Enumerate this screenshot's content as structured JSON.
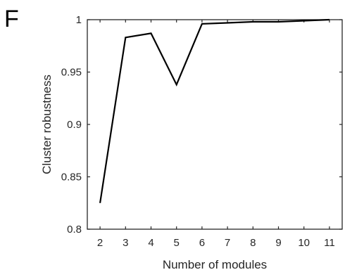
{
  "panel_letter": "F",
  "chart_data": {
    "type": "line",
    "xlabel": "Number of modules",
    "ylabel": "Cluster robustness",
    "x": [
      2,
      3,
      4,
      5,
      6,
      7,
      8,
      9,
      10,
      11
    ],
    "series": [
      {
        "values": [
          0.825,
          0.983,
          0.987,
          0.938,
          0.996,
          0.997,
          0.998,
          0.998,
          0.999,
          1.0
        ]
      }
    ],
    "xlim": [
      1.5,
      11.5
    ],
    "ylim": [
      0.8,
      1.0
    ],
    "xticks": [
      "2",
      "3",
      "4",
      "5",
      "6",
      "7",
      "8",
      "9",
      "10",
      "11"
    ],
    "yticks": [
      "0.8",
      "0.85",
      "0.9",
      "0.95",
      "1"
    ],
    "ytick_values": [
      0.8,
      0.85,
      0.9,
      0.95,
      1.0
    ],
    "grid": false,
    "legend": "none",
    "line_color": "#000000",
    "axis_color": "#262626"
  }
}
